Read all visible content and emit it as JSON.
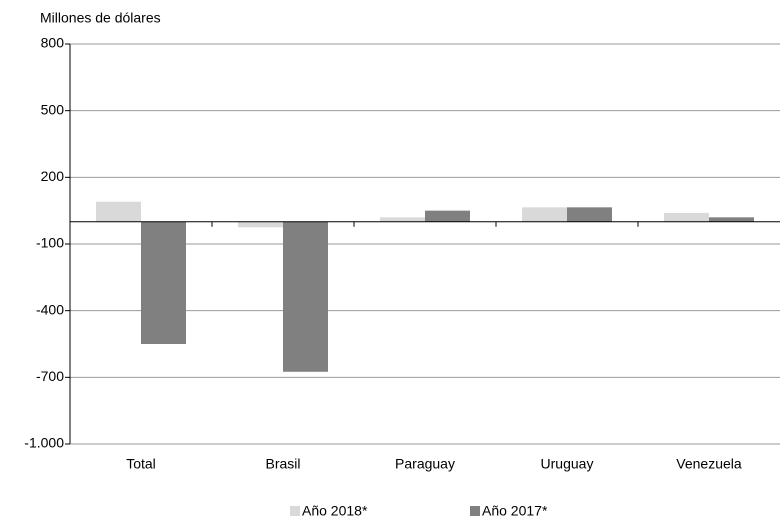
{
  "chart_data": {
    "type": "bar",
    "y_axis_label": "Millones de dólares",
    "categories": [
      "Total",
      "Brasil",
      "Paraguay",
      "Uruguay",
      "Venezuela"
    ],
    "series": [
      {
        "name": "Año 2018*",
        "color": "#d9d9d9",
        "values": [
          90,
          -25,
          20,
          65,
          40
        ]
      },
      {
        "name": "Año 2017*",
        "color": "#808080",
        "values": [
          -550,
          -675,
          50,
          65,
          20
        ]
      }
    ],
    "ylim": [
      -1000,
      800
    ],
    "yticks": [
      800,
      500,
      200,
      -100,
      -400,
      -700,
      {
        "value": -1000,
        "label": "-1.000"
      }
    ],
    "grid": true
  }
}
